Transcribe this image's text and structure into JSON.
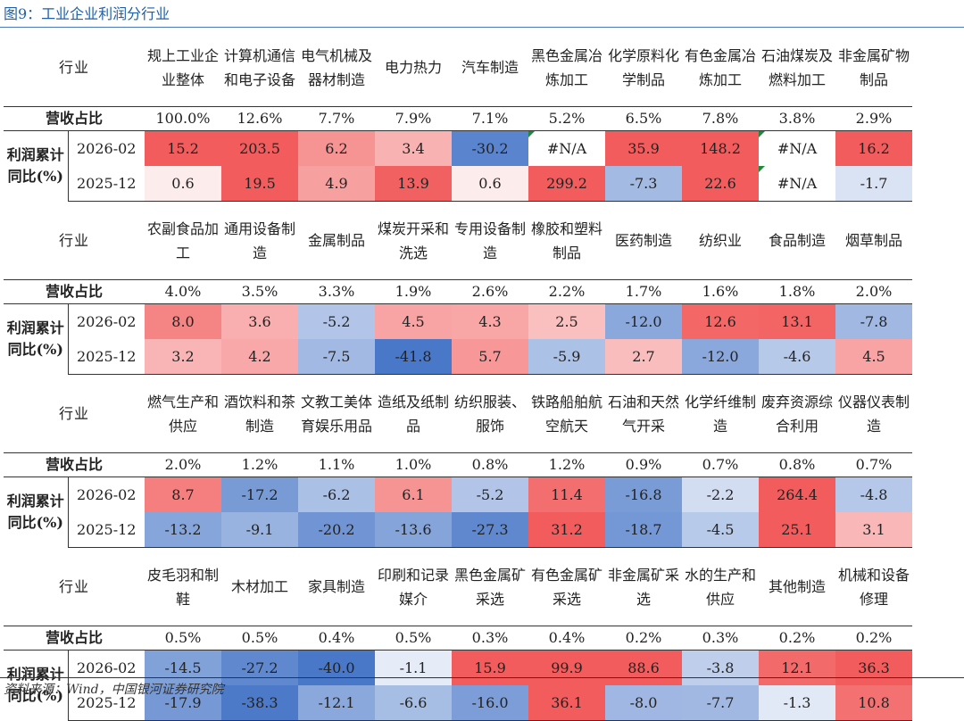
{
  "figure_title": "图9：工业企业利润分行业",
  "source": "资料来源：Wind，中国银河证券研究院",
  "labels": {
    "industry": "行业",
    "revenue_share": "营收占比",
    "profit_yoy": "利润累计同比(%)",
    "period_1": "2026-02",
    "period_2": "2025-12"
  },
  "colors": {
    "positive_max": "#f25c5c",
    "negative_max": "#4a78c8",
    "neutral": "#ffffff"
  },
  "blocks": [
    {
      "industries": [
        "规上工业企业整体",
        "计算机通信和电子设备",
        "电气机械及器材制造",
        "电力热力",
        "汽车制造",
        "黑色金属冶炼加工",
        "化学原料化学制品",
        "有色金属冶炼加工",
        "石油煤炭及燃料加工",
        "非金属矿物制品"
      ],
      "revenue_share": [
        "100.0%",
        "12.6%",
        "7.7%",
        "7.9%",
        "7.1%",
        "5.2%",
        "6.5%",
        "7.8%",
        "3.8%",
        "2.9%"
      ],
      "p1": [
        "15.2",
        "203.5",
        "6.2",
        "3.4",
        "-30.2",
        "#N/A",
        "35.9",
        "148.2",
        "#N/A",
        "16.2"
      ],
      "p2": [
        "0.6",
        "19.5",
        "4.9",
        "13.9",
        "0.6",
        "299.2",
        "-7.3",
        "22.6",
        "#N/A",
        "-1.7"
      ]
    },
    {
      "industries": [
        "农副食品加工",
        "通用设备制造",
        "金属制品",
        "煤炭开采和洗选",
        "专用设备制造",
        "橡胶和塑料制品",
        "医药制造",
        "纺织业",
        "食品制造",
        "烟草制品"
      ],
      "revenue_share": [
        "4.0%",
        "3.5%",
        "3.3%",
        "1.9%",
        "2.6%",
        "2.2%",
        "1.7%",
        "1.6%",
        "1.8%",
        "2.0%"
      ],
      "p1": [
        "8.0",
        "3.6",
        "-5.2",
        "4.5",
        "4.3",
        "2.5",
        "-12.0",
        "12.6",
        "13.1",
        "-7.8"
      ],
      "p2": [
        "3.2",
        "4.2",
        "-7.5",
        "-41.8",
        "5.7",
        "-5.9",
        "2.7",
        "-12.0",
        "-4.6",
        "4.5"
      ]
    },
    {
      "industries": [
        "燃气生产和供应",
        "酒饮料和茶制造",
        "文教工美体育娱乐用品",
        "造纸及纸制品",
        "纺织服装、服饰",
        "铁路船舶航空航天",
        "石油和天然气开采",
        "化学纤维制造",
        "废弃资源综合利用",
        "仪器仪表制造"
      ],
      "revenue_share": [
        "2.0%",
        "1.2%",
        "1.1%",
        "1.0%",
        "0.8%",
        "1.2%",
        "0.9%",
        "0.7%",
        "0.8%",
        "0.7%"
      ],
      "p1": [
        "8.7",
        "-17.2",
        "-6.2",
        "6.1",
        "-5.2",
        "11.4",
        "-16.8",
        "-2.2",
        "264.4",
        "-4.8"
      ],
      "p2": [
        "-13.2",
        "-9.1",
        "-20.2",
        "-13.6",
        "-27.3",
        "31.2",
        "-18.7",
        "-4.5",
        "25.1",
        "3.1"
      ]
    },
    {
      "industries": [
        "皮毛羽和制鞋",
        "木材加工",
        "家具制造",
        "印刷和记录媒介",
        "黑色金属矿采选",
        "有色金属矿采选",
        "非金属矿采选",
        "水的生产和供应",
        "其他制造",
        "机械和设备修理"
      ],
      "revenue_share": [
        "0.5%",
        "0.5%",
        "0.4%",
        "0.5%",
        "0.3%",
        "0.4%",
        "0.2%",
        "0.3%",
        "0.2%",
        "0.2%"
      ],
      "p1": [
        "-14.5",
        "-27.2",
        "-40.0",
        "-1.1",
        "15.9",
        "99.9",
        "88.6",
        "-3.8",
        "12.1",
        "36.3"
      ],
      "p2": [
        "-17.9",
        "-38.3",
        "-12.1",
        "-6.6",
        "-16.0",
        "36.1",
        "-8.0",
        "-7.7",
        "-1.3",
        "10.8"
      ]
    }
  ]
}
